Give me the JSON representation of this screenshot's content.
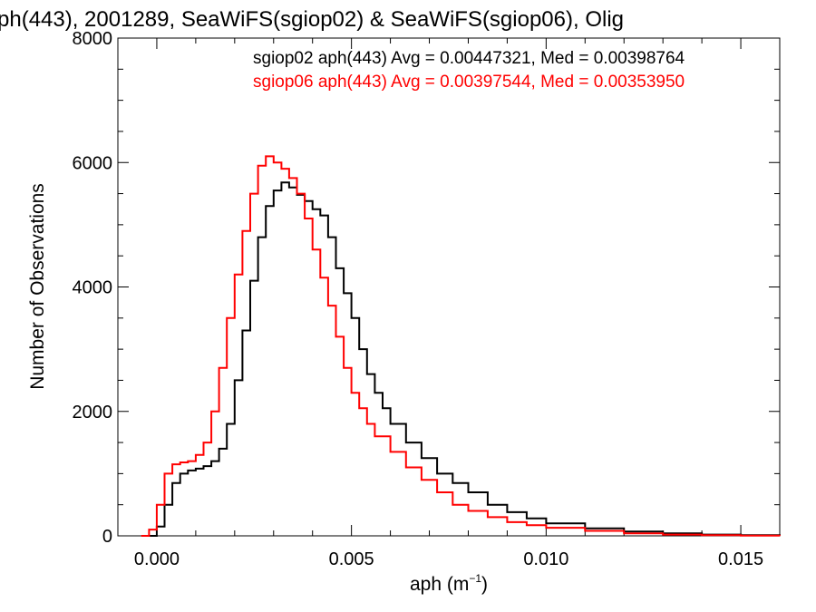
{
  "chart_data": {
    "type": "line",
    "step": true,
    "title": "ph(443), 2001289, SeaWiFS(sgiop02) & SeaWiFS(sgiop06), Olig",
    "xlabel_main": "aph (m",
    "xlabel_sup": "−1",
    "xlabel_end": ")",
    "ylabel": "Number of Observations",
    "xlim": [
      -0.001,
      0.016
    ],
    "ylim": [
      0,
      8000
    ],
    "xticks": [
      0.0,
      0.005,
      0.01,
      0.015
    ],
    "xtick_labels": [
      "0.000",
      "0.005",
      "0.010",
      "0.015"
    ],
    "yticks": [
      0,
      2000,
      4000,
      6000,
      8000
    ],
    "ytick_labels": [
      "0",
      "2000",
      "4000",
      "6000",
      "8000"
    ],
    "grid": false,
    "series": [
      {
        "name": "sgiop02",
        "color": "#000000",
        "legend": "sgiop02 aph(443) Avg = 0.00447321, Med = 0.00398764",
        "points": [
          [
            -0.0002,
            0
          ],
          [
            0.0,
            150
          ],
          [
            0.0002,
            500
          ],
          [
            0.0004,
            850
          ],
          [
            0.0006,
            1000
          ],
          [
            0.0008,
            1050
          ],
          [
            0.001,
            1080
          ],
          [
            0.0012,
            1120
          ],
          [
            0.0014,
            1200
          ],
          [
            0.0016,
            1400
          ],
          [
            0.0018,
            1800
          ],
          [
            0.002,
            2500
          ],
          [
            0.0022,
            3300
          ],
          [
            0.0024,
            4100
          ],
          [
            0.0026,
            4800
          ],
          [
            0.0028,
            5300
          ],
          [
            0.003,
            5550
          ],
          [
            0.0032,
            5680
          ],
          [
            0.0034,
            5600
          ],
          [
            0.0036,
            5480
          ],
          [
            0.0038,
            5380
          ],
          [
            0.004,
            5250
          ],
          [
            0.0042,
            5150
          ],
          [
            0.0044,
            4800
          ],
          [
            0.0046,
            4300
          ],
          [
            0.0048,
            3900
          ],
          [
            0.005,
            3500
          ],
          [
            0.0052,
            3000
          ],
          [
            0.0054,
            2600
          ],
          [
            0.0056,
            2300
          ],
          [
            0.0058,
            2050
          ],
          [
            0.006,
            1800
          ],
          [
            0.0064,
            1500
          ],
          [
            0.0068,
            1250
          ],
          [
            0.0072,
            1000
          ],
          [
            0.0076,
            850
          ],
          [
            0.008,
            700
          ],
          [
            0.0085,
            500
          ],
          [
            0.009,
            380
          ],
          [
            0.0095,
            280
          ],
          [
            0.01,
            200
          ],
          [
            0.011,
            120
          ],
          [
            0.012,
            70
          ],
          [
            0.013,
            40
          ],
          [
            0.014,
            20
          ],
          [
            0.015,
            10
          ],
          [
            0.016,
            0
          ]
        ]
      },
      {
        "name": "sgiop06",
        "color": "#ff0000",
        "legend": "sgiop06 aph(443) Avg = 0.00397544, Med = 0.00353950",
        "points": [
          [
            -0.0004,
            0
          ],
          [
            -0.0002,
            100
          ],
          [
            0.0,
            500
          ],
          [
            0.0002,
            1000
          ],
          [
            0.0004,
            1150
          ],
          [
            0.0006,
            1180
          ],
          [
            0.0008,
            1200
          ],
          [
            0.001,
            1300
          ],
          [
            0.0012,
            1500
          ],
          [
            0.0014,
            2000
          ],
          [
            0.0016,
            2700
          ],
          [
            0.0018,
            3500
          ],
          [
            0.002,
            4200
          ],
          [
            0.0022,
            4900
          ],
          [
            0.0024,
            5500
          ],
          [
            0.0026,
            5950
          ],
          [
            0.0028,
            6100
          ],
          [
            0.003,
            6000
          ],
          [
            0.0032,
            5900
          ],
          [
            0.0034,
            5750
          ],
          [
            0.0036,
            5500
          ],
          [
            0.0038,
            5100
          ],
          [
            0.004,
            4600
          ],
          [
            0.0042,
            4150
          ],
          [
            0.0044,
            3700
          ],
          [
            0.0046,
            3200
          ],
          [
            0.0048,
            2700
          ],
          [
            0.005,
            2300
          ],
          [
            0.0052,
            2050
          ],
          [
            0.0054,
            1800
          ],
          [
            0.0056,
            1600
          ],
          [
            0.006,
            1350
          ],
          [
            0.0064,
            1100
          ],
          [
            0.0068,
            900
          ],
          [
            0.0072,
            700
          ],
          [
            0.0076,
            500
          ],
          [
            0.008,
            400
          ],
          [
            0.0085,
            300
          ],
          [
            0.009,
            220
          ],
          [
            0.0095,
            170
          ],
          [
            0.01,
            130
          ],
          [
            0.011,
            80
          ],
          [
            0.012,
            40
          ],
          [
            0.013,
            20
          ],
          [
            0.014,
            10
          ],
          [
            0.015,
            5
          ],
          [
            0.016,
            0
          ]
        ]
      }
    ]
  }
}
